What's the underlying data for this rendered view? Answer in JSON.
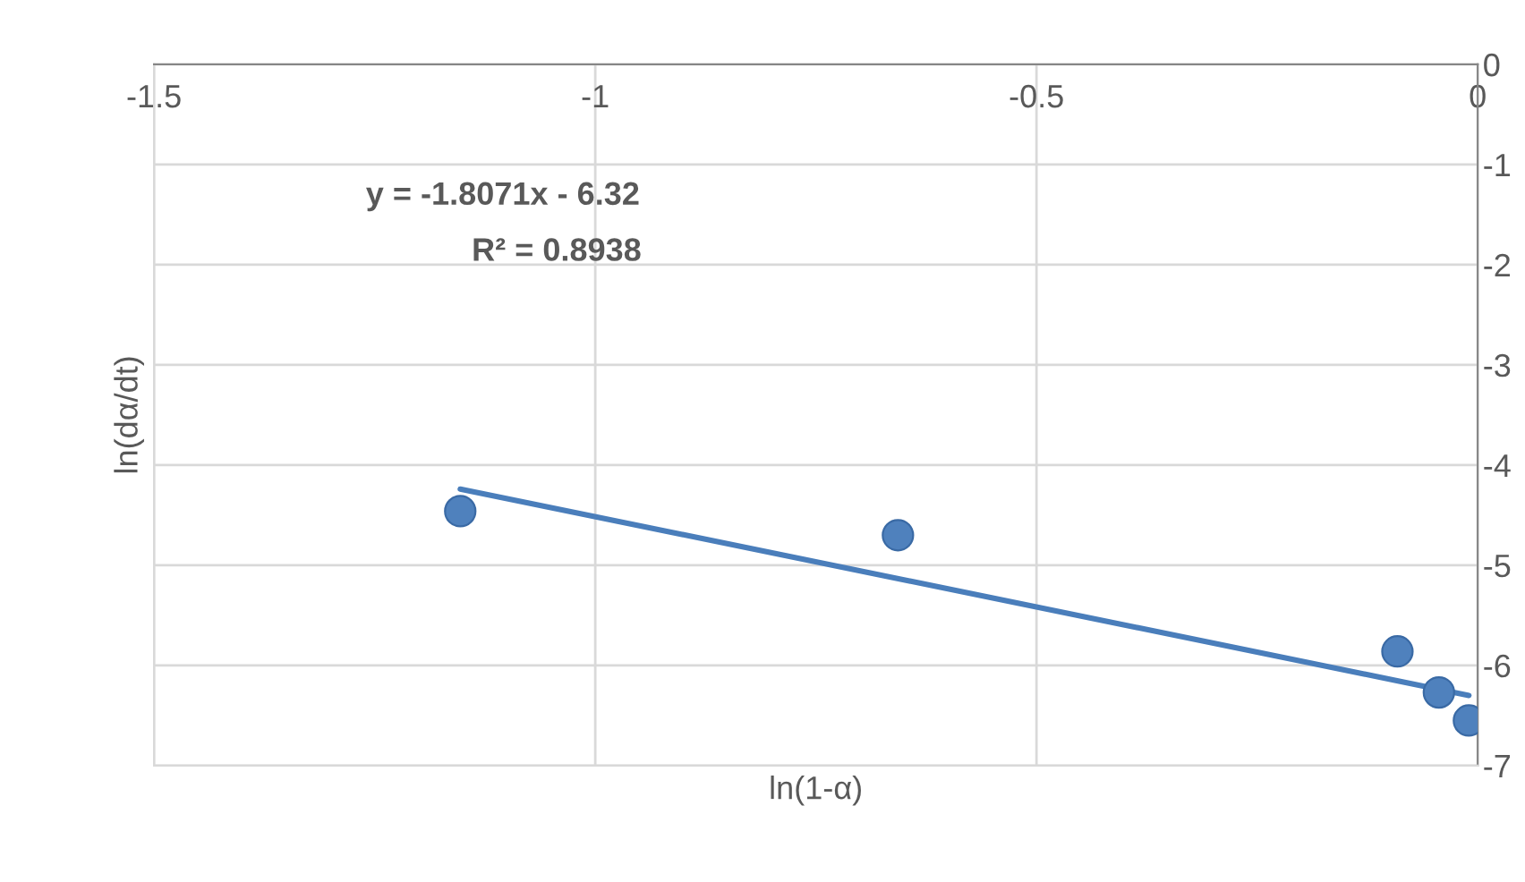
{
  "chart_data": {
    "type": "scatter",
    "xlabel": "ln(1-α)",
    "ylabel": "ln(dα/dt)",
    "series": [
      {
        "color": "#4f81bd",
        "x": [
          -1.153,
          -0.657,
          -0.091,
          -0.044,
          -0.01
        ],
        "values": [
          -4.46,
          -4.7,
          -5.86,
          -6.27,
          -6.55
        ],
        "marker": "circle"
      },
      {
        "type": "line",
        "color": "#4a7ebb",
        "x": [
          -1.153,
          -0.01
        ],
        "values": [
          -4.24,
          -6.3
        ],
        "marker": "none",
        "line_style": "solid"
      }
    ],
    "xlim": [
      -1.5,
      0
    ],
    "xticks": [
      -1.5,
      -1,
      -0.5,
      0
    ],
    "ylim": [
      -7,
      0
    ],
    "yticks": [
      -7,
      -6,
      -5,
      -4,
      -3,
      -2,
      -1,
      0
    ],
    "grid": true,
    "legend": false,
    "annotations": [
      "y = -1.8071x - 6.32",
      "R² = 0.8938"
    ]
  }
}
